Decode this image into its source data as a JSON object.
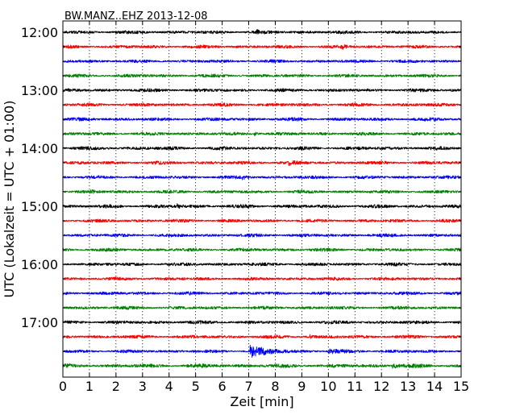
{
  "chart_data": {
    "type": "line",
    "title": "BW.MANZ..EHZ 2013-12-08",
    "xlabel": "Zeit  [min]",
    "ylabel": "UTC (Lokalzeit = UTC + 01:00)",
    "xlim": [
      0,
      15
    ],
    "x_ticks": [
      "0",
      "1",
      "2",
      "3",
      "4",
      "5",
      "6",
      "7",
      "8",
      "9",
      "10",
      "11",
      "12",
      "13",
      "14",
      "15"
    ],
    "y_tick_labels": [
      "12:00",
      "13:00",
      "14:00",
      "15:00",
      "16:00",
      "17:00"
    ],
    "trace_interval_min": 15,
    "start_time": "12:00",
    "grid": "vertical-dotted",
    "trace_colors": [
      "#000000",
      "#ff0000",
      "#0000ff",
      "#008000"
    ],
    "traces": [
      {
        "time": "12:00",
        "color": "#000000",
        "amp": 1.6,
        "events": [
          {
            "t": 7.3,
            "a": 2.0,
            "dur": 0.3
          }
        ]
      },
      {
        "time": "12:15",
        "color": "#ff0000",
        "amp": 1.6,
        "events": [
          {
            "t": 10.5,
            "a": 2.5,
            "dur": 0.5
          }
        ]
      },
      {
        "time": "12:30",
        "color": "#0000ff",
        "amp": 1.5,
        "events": []
      },
      {
        "time": "12:45",
        "color": "#008000",
        "amp": 1.6,
        "events": []
      },
      {
        "time": "13:00",
        "color": "#000000",
        "amp": 1.6,
        "events": []
      },
      {
        "time": "13:15",
        "color": "#ff0000",
        "amp": 1.7,
        "events": []
      },
      {
        "time": "13:30",
        "color": "#0000ff",
        "amp": 1.7,
        "events": []
      },
      {
        "time": "13:45",
        "color": "#008000",
        "amp": 1.6,
        "events": [
          {
            "t": 7.2,
            "a": 2.0,
            "dur": 0.4
          }
        ]
      },
      {
        "time": "14:00",
        "color": "#000000",
        "amp": 1.8,
        "events": []
      },
      {
        "time": "14:15",
        "color": "#ff0000",
        "amp": 1.7,
        "events": [
          {
            "t": 8.5,
            "a": 2.0,
            "dur": 0.4
          }
        ]
      },
      {
        "time": "14:30",
        "color": "#0000ff",
        "amp": 1.6,
        "events": [
          {
            "t": 6.7,
            "a": 2.5,
            "dur": 0.5
          }
        ]
      },
      {
        "time": "14:45",
        "color": "#008000",
        "amp": 1.6,
        "events": [
          {
            "t": 1.0,
            "a": 2.0,
            "dur": 0.4
          }
        ]
      },
      {
        "time": "15:00",
        "color": "#000000",
        "amp": 1.8,
        "events": [
          {
            "t": 4.3,
            "a": 2.5,
            "dur": 0.3
          }
        ]
      },
      {
        "time": "15:15",
        "color": "#ff0000",
        "amp": 1.6,
        "events": []
      },
      {
        "time": "15:30",
        "color": "#0000ff",
        "amp": 1.6,
        "events": []
      },
      {
        "time": "15:45",
        "color": "#008000",
        "amp": 1.6,
        "events": []
      },
      {
        "time": "16:00",
        "color": "#000000",
        "amp": 1.6,
        "events": []
      },
      {
        "time": "16:15",
        "color": "#ff0000",
        "amp": 1.6,
        "events": []
      },
      {
        "time": "16:30",
        "color": "#0000ff",
        "amp": 1.6,
        "events": []
      },
      {
        "time": "16:45",
        "color": "#008000",
        "amp": 1.6,
        "events": []
      },
      {
        "time": "17:00",
        "color": "#000000",
        "amp": 1.7,
        "events": []
      },
      {
        "time": "17:15",
        "color": "#ff0000",
        "amp": 1.7,
        "events": [
          {
            "t": 9.3,
            "a": 2.0,
            "dur": 0.3
          }
        ]
      },
      {
        "time": "17:30",
        "color": "#0000ff",
        "amp": 1.5,
        "events": [
          {
            "t": 7.05,
            "a": 7.0,
            "dur": 1.8
          },
          {
            "t": 10.0,
            "a": 2.5,
            "dur": 1.0
          }
        ]
      },
      {
        "time": "17:45",
        "color": "#008000",
        "amp": 2.0,
        "events": [
          {
            "t": 12.4,
            "a": 2.5,
            "dur": 1.0
          }
        ]
      }
    ]
  }
}
